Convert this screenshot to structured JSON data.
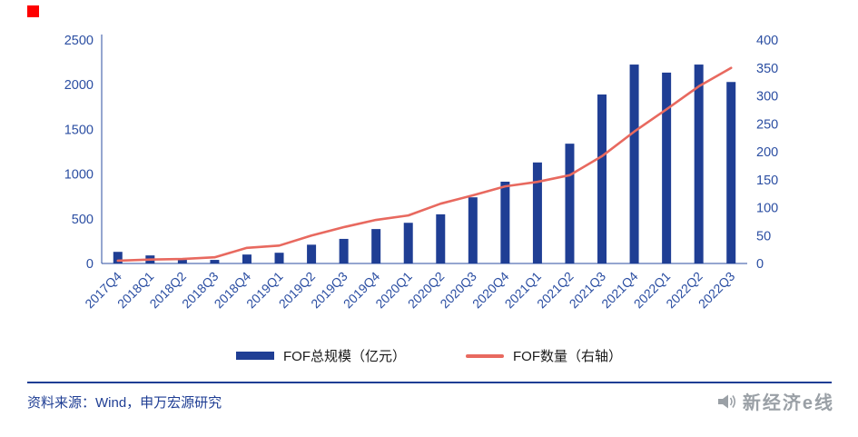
{
  "colors": {
    "bar": "#1F3E94",
    "line": "#E8695F",
    "axis_text": "#2B4EA2",
    "axis_line": "#2B4EA2",
    "legend_text": "#1a1a1a",
    "footer_text": "#1F3E94",
    "divider": "#1F3E94",
    "red_square": "#fe0000",
    "watermark": "#9aa0a6"
  },
  "chart_data": {
    "type": "bar",
    "subtype": "bar+line combo, dual axis",
    "categories": [
      "2017Q4",
      "2018Q1",
      "2018Q2",
      "2018Q3",
      "2018Q4",
      "2019Q1",
      "2019Q2",
      "2019Q3",
      "2019Q4",
      "2020Q1",
      "2020Q2",
      "2020Q3",
      "2020Q4",
      "2021Q1",
      "2021Q2",
      "2021Q3",
      "2021Q4",
      "2022Q1",
      "2022Q2",
      "2022Q3"
    ],
    "series": [
      {
        "name": "FOF总规模（亿元）",
        "type": "bar",
        "axis": "left",
        "values": [
          130,
          90,
          50,
          40,
          100,
          120,
          210,
          275,
          385,
          455,
          550,
          740,
          915,
          1130,
          1340,
          1890,
          2225,
          2135,
          2225,
          2030
        ]
      },
      {
        "name": "FOF数量（右轴）",
        "type": "line",
        "axis": "right",
        "values": [
          5,
          7,
          8,
          11,
          28,
          32,
          50,
          65,
          78,
          86,
          107,
          122,
          138,
          146,
          158,
          192,
          236,
          276,
          317,
          350
        ]
      }
    ],
    "left_axis": {
      "min": 0,
      "max": 2500,
      "ticks": [
        0,
        500,
        1000,
        1500,
        2000,
        2500
      ]
    },
    "right_axis": {
      "min": 0,
      "max": 400,
      "ticks": [
        0,
        50,
        100,
        150,
        200,
        250,
        300,
        350,
        400
      ]
    },
    "grid": false,
    "legend_position": "bottom",
    "title": ""
  },
  "footer": {
    "source": "资料来源：Wind，申万宏源研究"
  },
  "watermark": {
    "text": "新经济e线",
    "icon": "megaphone-icon"
  }
}
